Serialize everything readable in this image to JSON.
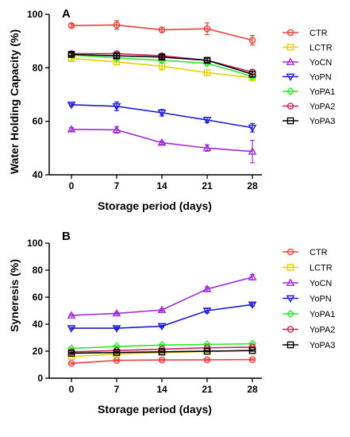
{
  "chart_data": [
    {
      "type": "line",
      "panel_label": "A",
      "xlabel": "Storage period (days)",
      "ylabel": "Water Holding Capacity (%)",
      "x": [
        0,
        7,
        14,
        21,
        28
      ],
      "xticks": [
        "0",
        "7",
        "14",
        "21",
        "28"
      ],
      "ylim": [
        40,
        100
      ],
      "yticks": [
        "40",
        "60",
        "80",
        "100"
      ],
      "grid": false,
      "legend_position": "right",
      "series": [
        {
          "name": "CTR",
          "values": [
            95.8,
            96.0,
            94.2,
            94.6,
            90.3
          ],
          "errors": [
            0.6,
            1.6,
            0.8,
            2.2,
            1.8
          ],
          "color": "#e8413e",
          "marker": "circle"
        },
        {
          "name": "LCTR",
          "values": [
            83.5,
            82.2,
            80.6,
            78.2,
            76.3
          ],
          "errors": [
            0.8,
            1.0,
            1.4,
            1.0,
            1.2
          ],
          "color": "#e0d300",
          "marker": "square"
        },
        {
          "name": "YoCN",
          "values": [
            57.0,
            56.8,
            52.0,
            50.0,
            48.7
          ],
          "errors": [
            0.6,
            1.2,
            0.6,
            1.2,
            4.2
          ],
          "color": "#a02bd6",
          "marker": "triangle-up"
        },
        {
          "name": "YoPN",
          "values": [
            66.2,
            65.6,
            63.2,
            60.5,
            57.6
          ],
          "errors": [
            0.4,
            1.6,
            1.2,
            1.0,
            1.6
          ],
          "color": "#1a1ad6",
          "marker": "triangle-down"
        },
        {
          "name": "YoPA1",
          "values": [
            84.8,
            83.7,
            82.8,
            81.7,
            76.8
          ],
          "errors": [
            0.6,
            0.8,
            0.8,
            0.8,
            1.0
          ],
          "color": "#2ee82e",
          "marker": "diamond"
        },
        {
          "name": "YoPA2",
          "values": [
            85.3,
            85.3,
            84.5,
            82.8,
            78.4
          ],
          "errors": [
            0.6,
            0.8,
            0.8,
            0.8,
            1.0
          ],
          "color": "#c8245a",
          "marker": "circle"
        },
        {
          "name": "YoPA3",
          "values": [
            85.0,
            84.5,
            84.0,
            82.8,
            77.6
          ],
          "errors": [
            0.6,
            0.8,
            0.8,
            0.8,
            1.0
          ],
          "color": "#000000",
          "marker": "square"
        }
      ]
    },
    {
      "type": "line",
      "panel_label": "B",
      "xlabel": "Storage period (days)",
      "ylabel": "Syneresis (%)",
      "x": [
        0,
        7,
        14,
        21,
        28
      ],
      "xticks": [
        "0",
        "7",
        "14",
        "21",
        "28"
      ],
      "ylim": [
        0,
        100
      ],
      "yticks": [
        "0",
        "20",
        "40",
        "60",
        "80",
        "100"
      ],
      "grid": false,
      "legend_position": "right",
      "series": [
        {
          "name": "CTR",
          "values": [
            11.0,
            13.2,
            13.5,
            13.6,
            13.8
          ],
          "errors": [
            0.5,
            0.5,
            0.5,
            0.5,
            0.5
          ],
          "color": "#e8413e",
          "marker": "circle"
        },
        {
          "name": "LCTR",
          "values": [
            16.0,
            17.8,
            19.0,
            19.8,
            20.5
          ],
          "errors": [
            0.5,
            0.5,
            0.5,
            0.5,
            0.5
          ],
          "color": "#e0d300",
          "marker": "square"
        },
        {
          "name": "YoCN",
          "values": [
            46.5,
            48.0,
            50.5,
            66.0,
            74.8
          ],
          "errors": [
            0.6,
            0.8,
            0.8,
            1.6,
            2.0
          ],
          "color": "#a02bd6",
          "marker": "triangle-up"
        },
        {
          "name": "YoPN",
          "values": [
            37.0,
            37.0,
            38.5,
            50.0,
            54.5
          ],
          "errors": [
            0.6,
            0.8,
            0.8,
            1.6,
            1.0
          ],
          "color": "#1a1ad6",
          "marker": "triangle-down"
        },
        {
          "name": "YoPA1",
          "values": [
            22.0,
            23.5,
            24.5,
            25.0,
            25.5
          ],
          "errors": [
            0.5,
            0.5,
            0.5,
            0.5,
            0.5
          ],
          "color": "#2ee82e",
          "marker": "diamond"
        },
        {
          "name": "YoPA2",
          "values": [
            19.5,
            20.5,
            21.5,
            22.5,
            23.0
          ],
          "errors": [
            0.5,
            0.5,
            0.5,
            0.5,
            0.5
          ],
          "color": "#c8245a",
          "marker": "circle"
        },
        {
          "name": "YoPA3",
          "values": [
            18.5,
            19.0,
            19.5,
            20.0,
            20.5
          ],
          "errors": [
            0.5,
            0.5,
            0.5,
            0.5,
            0.5
          ],
          "color": "#000000",
          "marker": "square"
        }
      ]
    }
  ]
}
